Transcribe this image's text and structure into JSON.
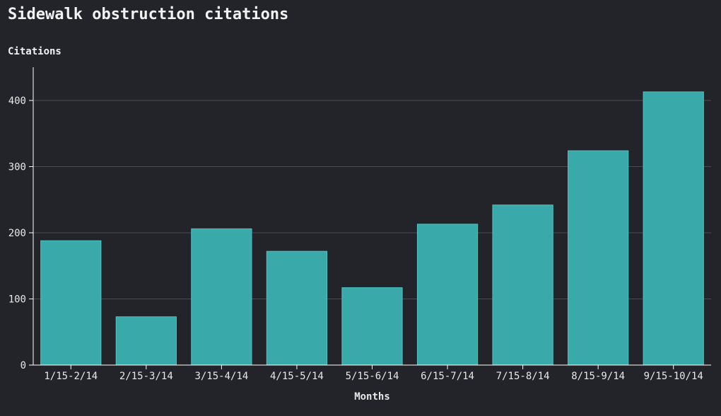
{
  "chart_data": {
    "type": "bar",
    "title": "Sidewalk obstruction citations",
    "xlabel": "Months",
    "ylabel": "Citations",
    "categories": [
      "1/15-2/14",
      "2/15-3/14",
      "3/15-4/14",
      "4/15-5/14",
      "5/15-6/14",
      "6/15-7/14",
      "7/15-8/14",
      "8/15-9/14",
      "9/15-10/14"
    ],
    "values": [
      188,
      73,
      206,
      172,
      117,
      213,
      242,
      324,
      413
    ],
    "ylim": [
      0,
      450
    ],
    "yticks": [
      0,
      100,
      200,
      300,
      400
    ],
    "grid": true,
    "colors": {
      "bar": "#3aa9aa",
      "background": "#232429",
      "grid": "#4a4b50",
      "axis": "#ffffff"
    }
  }
}
